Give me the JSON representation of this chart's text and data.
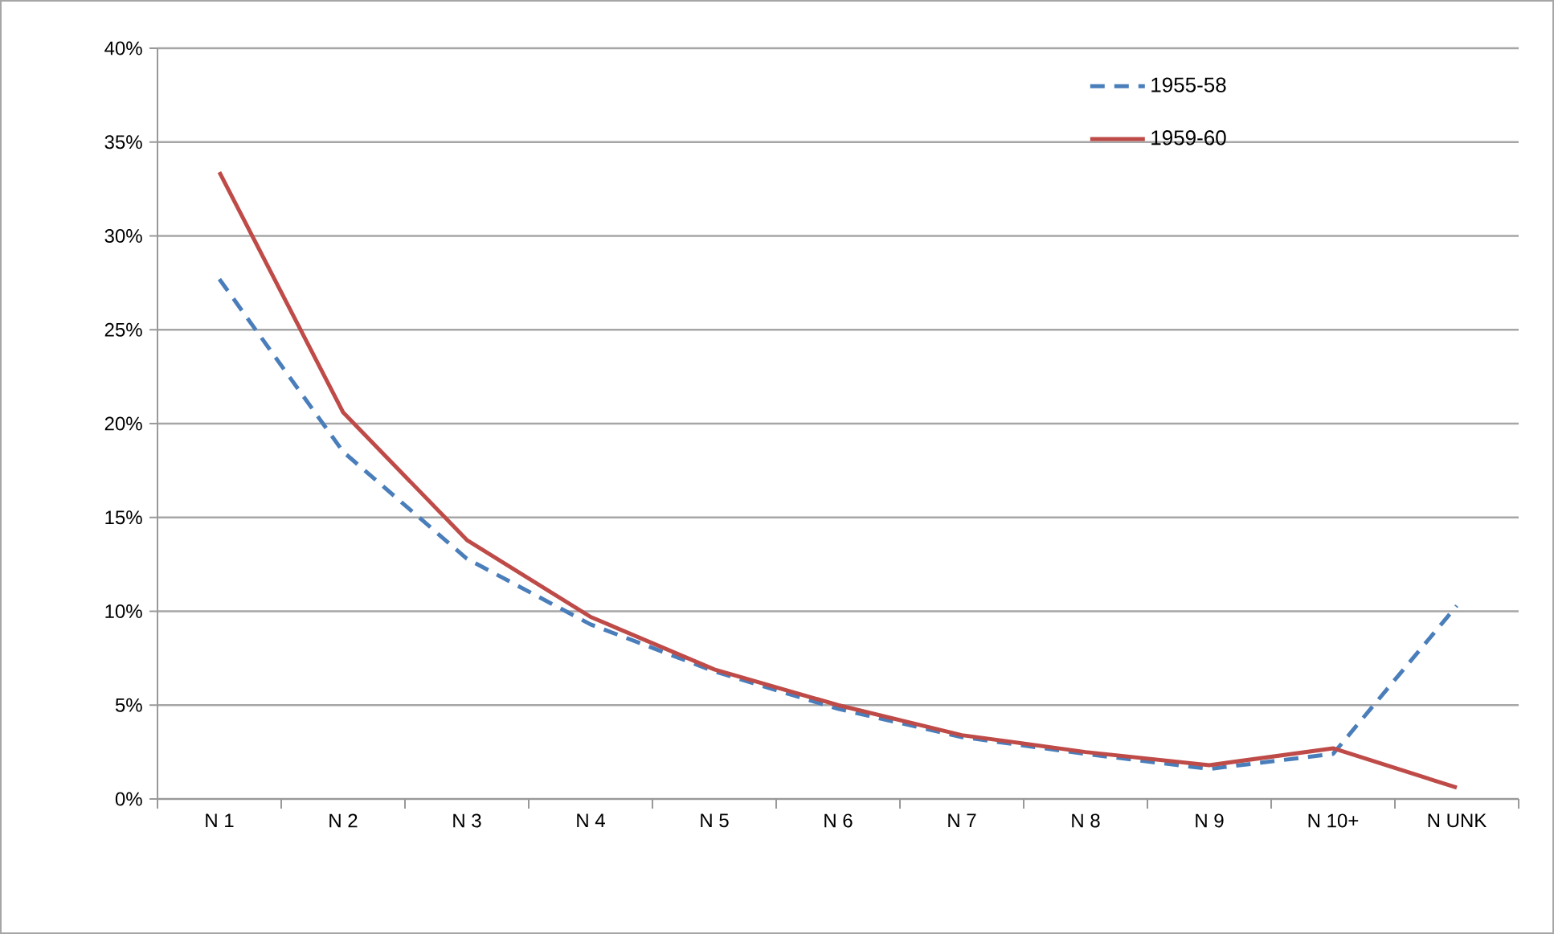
{
  "chart_data": {
    "type": "line",
    "categories": [
      "N 1",
      "N 2",
      "N 3",
      "N 4",
      "N 5",
      "N 6",
      "N 7",
      "N 8",
      "N 9",
      "N 10+",
      "N UNK"
    ],
    "series": [
      {
        "name": "1955-58",
        "color": "#4a7ebb",
        "line_style": "dashed",
        "values": [
          27.7,
          18.5,
          12.8,
          9.3,
          6.8,
          4.8,
          3.3,
          2.4,
          1.6,
          2.4,
          10.3
        ]
      },
      {
        "name": "1959-60",
        "color": "#be4b48",
        "line_style": "solid",
        "values": [
          33.4,
          20.6,
          13.8,
          9.7,
          6.9,
          5.0,
          3.4,
          2.5,
          1.8,
          2.7,
          0.6
        ]
      }
    ],
    "ylim": [
      0,
      40
    ],
    "yticks": [
      {
        "value": 0,
        "label": "0%"
      },
      {
        "value": 5,
        "label": "5%"
      },
      {
        "value": 10,
        "label": "10%"
      },
      {
        "value": 15,
        "label": "15%"
      },
      {
        "value": 20,
        "label": "20%"
      },
      {
        "value": 25,
        "label": "25%"
      },
      {
        "value": 30,
        "label": "30%"
      },
      {
        "value": 35,
        "label": "35%"
      },
      {
        "value": 40,
        "label": "40%"
      }
    ],
    "grid": "y",
    "legend": "top right",
    "marker": "none"
  }
}
